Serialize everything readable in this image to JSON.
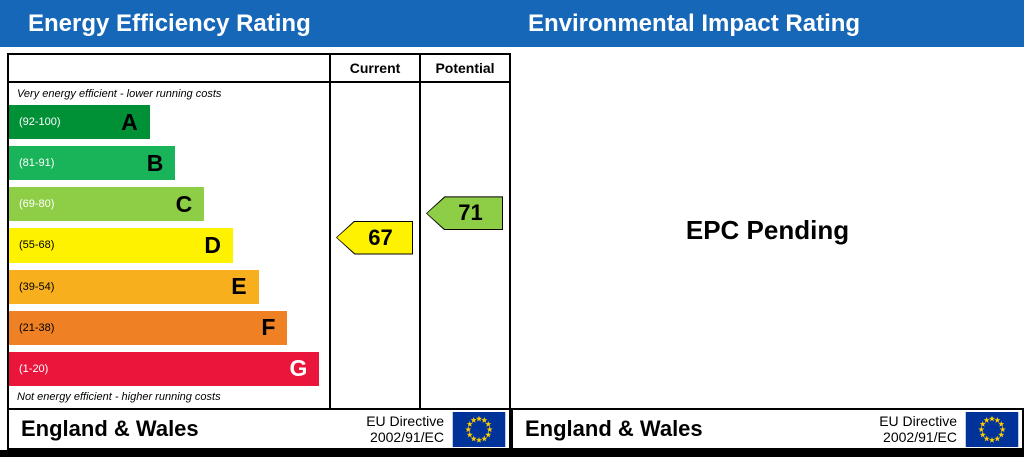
{
  "header": {
    "left_title": "Energy Efficiency Rating",
    "right_title": "Environmental Impact Rating",
    "bg_color": "#1667b8",
    "text_color": "#ffffff"
  },
  "left_chart": {
    "columns": {
      "current": "Current",
      "potential": "Potential"
    },
    "top_note": "Very energy efficient - lower running costs",
    "bottom_note": "Not energy efficient - higher running costs",
    "bands": [
      {
        "letter": "A",
        "range": "(92-100)",
        "color": "#009036",
        "width_pct": 44,
        "range_color": "#ffffff",
        "letter_color": "#000000"
      },
      {
        "letter": "B",
        "range": "(81-91)",
        "color": "#19b459",
        "width_pct": 52,
        "range_color": "#ffffff",
        "letter_color": "#000000"
      },
      {
        "letter": "C",
        "range": "(69-80)",
        "color": "#8dce46",
        "width_pct": 61,
        "range_color": "#ffffff",
        "letter_color": "#000000"
      },
      {
        "letter": "D",
        "range": "(55-68)",
        "color": "#fff200",
        "width_pct": 70,
        "range_color": "#000000",
        "letter_color": "#000000"
      },
      {
        "letter": "E",
        "range": "(39-54)",
        "color": "#f7af1d",
        "width_pct": 78,
        "range_color": "#000000",
        "letter_color": "#000000"
      },
      {
        "letter": "F",
        "range": "(21-38)",
        "color": "#ef8023",
        "width_pct": 87,
        "range_color": "#000000",
        "letter_color": "#000000"
      },
      {
        "letter": "G",
        "range": "(1-20)",
        "color": "#e9153b",
        "width_pct": 97,
        "range_color": "#ffffff",
        "letter_color": "#ffffff"
      }
    ],
    "current": {
      "value": "67",
      "color": "#fff200",
      "band_index": 3
    },
    "potential": {
      "value": "71",
      "color": "#8dce46",
      "band_index": 2
    }
  },
  "right_panel": {
    "status": "EPC Pending"
  },
  "footer": {
    "region": "England & Wales",
    "directive_line1": "EU Directive",
    "directive_line2": "2002/91/EC",
    "flag_bg_color": "#003399",
    "flag_star_color": "#ffcc00"
  },
  "chart_data": {
    "type": "bar",
    "title": "Energy Efficiency Rating",
    "panel2_title": "Environmental Impact Rating",
    "panel2_status": "EPC Pending",
    "categories": [
      "A",
      "B",
      "C",
      "D",
      "E",
      "F",
      "G"
    ],
    "category_ranges": [
      "92-100",
      "81-91",
      "69-80",
      "55-68",
      "39-54",
      "21-38",
      "1-20"
    ],
    "bar_lengths_pct": [
      44,
      52,
      61,
      70,
      78,
      87,
      97
    ],
    "colors": [
      "#009036",
      "#19b459",
      "#8dce46",
      "#fff200",
      "#f7af1d",
      "#ef8023",
      "#e9153b"
    ],
    "series": [
      {
        "name": "Current",
        "value": 67,
        "band": "D",
        "color": "#fff200"
      },
      {
        "name": "Potential",
        "value": 71,
        "band": "C",
        "color": "#8dce46"
      }
    ],
    "notes": [
      "Very energy efficient - lower running costs",
      "Not energy efficient - higher running costs"
    ],
    "footer": "England & Wales — EU Directive 2002/91/EC"
  }
}
